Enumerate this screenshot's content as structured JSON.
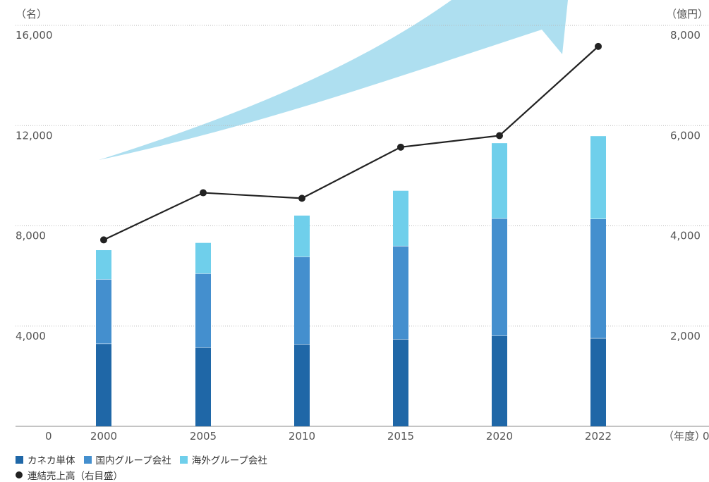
{
  "chart_data": {
    "type": "bar",
    "categories": [
      "2000",
      "2005",
      "2010",
      "2015",
      "2020",
      "2022"
    ],
    "left_axis": {
      "unit": "（名）",
      "ticks": [
        "16,000",
        "12,000",
        "8,000",
        "4,000"
      ],
      "ylim": [
        0,
        16000
      ]
    },
    "right_axis": {
      "unit": "（億円）",
      "ticks": [
        "8,000",
        "6,000",
        "4,000",
        "2,000"
      ],
      "ylim": [
        0,
        8000
      ]
    },
    "origin_left_label": "0",
    "origin_right_label": "0",
    "x_unit": "（年度）",
    "grid": true,
    "series": [
      {
        "name": "カネカ単体",
        "type": "bar",
        "stack": "employees",
        "axis": "left",
        "color": "#1f67a7",
        "values": [
          3300,
          3150,
          3280,
          3480,
          3620,
          3520
        ]
      },
      {
        "name": "国内グループ会社",
        "type": "bar",
        "stack": "employees",
        "axis": "left",
        "color": "#448fce",
        "values": [
          2570,
          2950,
          3490,
          3720,
          4680,
          4760
        ]
      },
      {
        "name": "海外グループ会社",
        "type": "bar",
        "stack": "employees",
        "axis": "left",
        "color": "#6fcfeb",
        "values": [
          1160,
          1220,
          1640,
          2200,
          3000,
          3300
        ]
      },
      {
        "name": "連結売上高（右目盛）",
        "type": "line",
        "axis": "right",
        "color": "#222222",
        "values": [
          3720,
          4660,
          4550,
          5570,
          5800,
          7580
        ]
      }
    ],
    "legend_position": "bottom-left",
    "decoration": {
      "growth_arrow_color": "#aedff0"
    }
  }
}
